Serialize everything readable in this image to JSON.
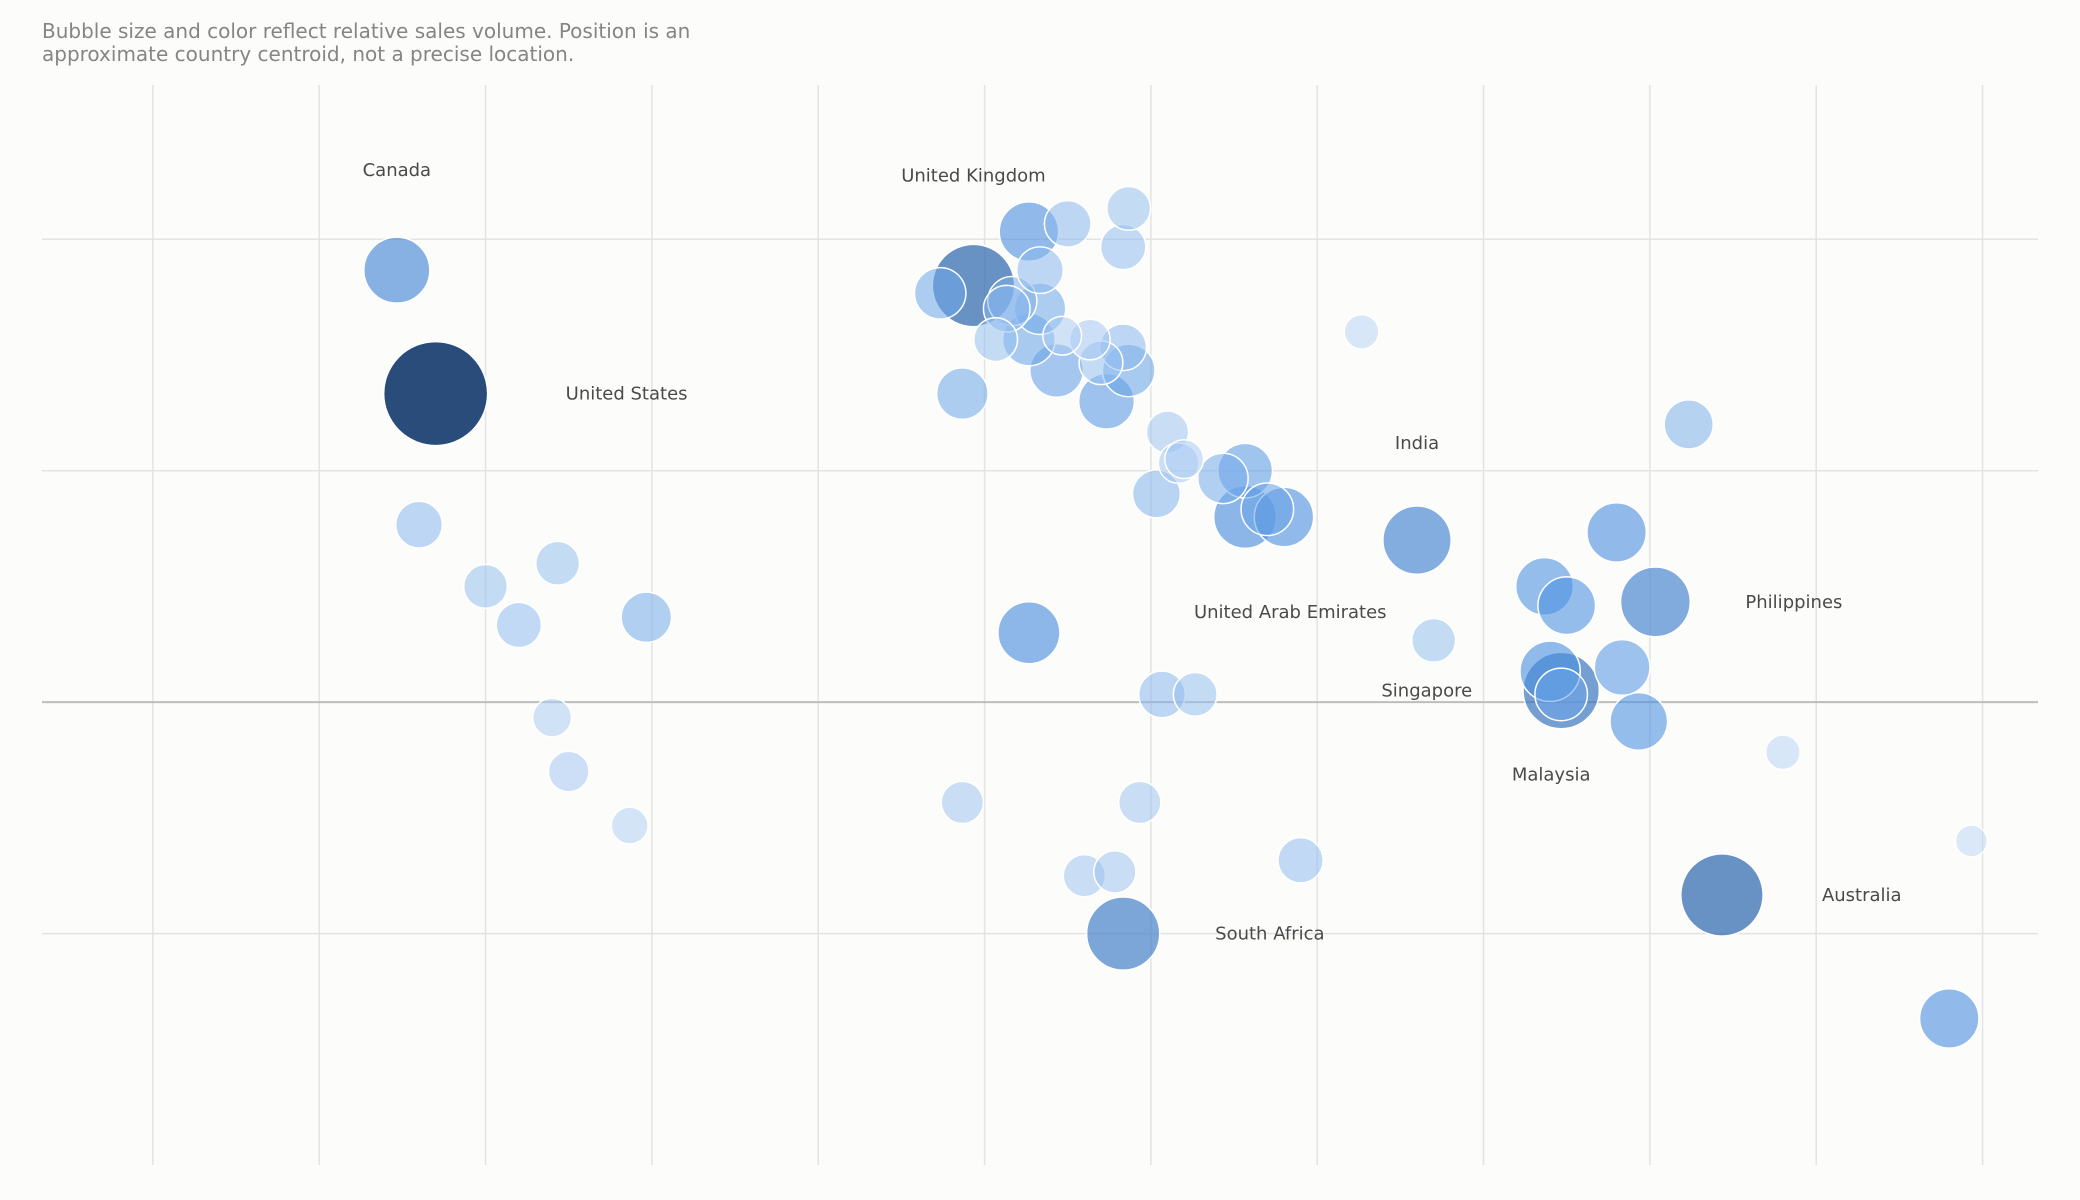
{
  "caption": "Bubble size and color reflect relative sales volume. Position is an approximate country centroid, not a precise location.",
  "chart_data": {
    "type": "scatter",
    "title": "",
    "xlabel": "",
    "ylabel": "",
    "xlim": [
      -170,
      190
    ],
    "ylim": [
      -60,
      80
    ],
    "grid": true,
    "x_gridlines": [
      -150,
      -120,
      -90,
      -60,
      -30,
      0,
      30,
      60,
      90,
      120,
      150,
      180
    ],
    "y_gridlines": [
      -30,
      0,
      30,
      60
    ],
    "baseline_y": 0,
    "color_scale": [
      "#c5dcf7",
      "#4a90e2",
      "#1e4273"
    ],
    "points": [
      {
        "x": -106,
        "y": 56,
        "size": 0.3,
        "label": "Canada"
      },
      {
        "x": -99,
        "y": 40,
        "size": 1.0,
        "label": "United States"
      },
      {
        "x": -102,
        "y": 23,
        "size": 0.1
      },
      {
        "x": -90,
        "y": 15,
        "size": 0.08
      },
      {
        "x": -77,
        "y": 18,
        "size": 0.08
      },
      {
        "x": -84,
        "y": 10,
        "size": 0.09
      },
      {
        "x": -61,
        "y": 11,
        "size": 0.13
      },
      {
        "x": -78,
        "y": -2,
        "size": 0.05
      },
      {
        "x": -75,
        "y": -9,
        "size": 0.06
      },
      {
        "x": -64,
        "y": -16,
        "size": 0.04
      },
      {
        "x": -2,
        "y": 54,
        "size": 0.55,
        "label": "United Kingdom"
      },
      {
        "x": -8,
        "y": 53,
        "size": 0.14
      },
      {
        "x": 8,
        "y": 61,
        "size": 0.22
      },
      {
        "x": 15,
        "y": 62,
        "size": 0.1
      },
      {
        "x": 26,
        "y": 64,
        "size": 0.08
      },
      {
        "x": 25,
        "y": 59,
        "size": 0.09
      },
      {
        "x": 10,
        "y": 56,
        "size": 0.1
      },
      {
        "x": 5,
        "y": 52,
        "size": 0.12
      },
      {
        "x": 4,
        "y": 51,
        "size": 0.1
      },
      {
        "x": 10,
        "y": 51,
        "size": 0.14
      },
      {
        "x": 8,
        "y": 47,
        "size": 0.15
      },
      {
        "x": 2,
        "y": 47,
        "size": 0.08
      },
      {
        "x": 14,
        "y": 47.5,
        "size": 0.05
      },
      {
        "x": 19,
        "y": 47,
        "size": 0.06
      },
      {
        "x": 25,
        "y": 46,
        "size": 0.1
      },
      {
        "x": 21,
        "y": 44,
        "size": 0.08
      },
      {
        "x": 26,
        "y": 43,
        "size": 0.15
      },
      {
        "x": 13,
        "y": 43,
        "size": 0.16
      },
      {
        "x": 22,
        "y": 39,
        "size": 0.18
      },
      {
        "x": -4,
        "y": 40,
        "size": 0.14
      },
      {
        "x": 33,
        "y": 35,
        "size": 0.07
      },
      {
        "x": 36,
        "y": 31.5,
        "size": 0.05
      },
      {
        "x": 35,
        "y": 31,
        "size": 0.06
      },
      {
        "x": 43,
        "y": 29,
        "size": 0.13
      },
      {
        "x": 47,
        "y": 30,
        "size": 0.17
      },
      {
        "x": 54,
        "y": 24,
        "size": 0.22,
        "label": "United Arab Emirates"
      },
      {
        "x": 47,
        "y": 24,
        "size": 0.26
      },
      {
        "x": 51,
        "y": 25,
        "size": 0.15
      },
      {
        "x": 31,
        "y": 27,
        "size": 0.11
      },
      {
        "x": 78,
        "y": 21,
        "size": 0.33,
        "label": "India"
      },
      {
        "x": 68,
        "y": 48,
        "size": 0.03
      },
      {
        "x": 8,
        "y": 9,
        "size": 0.25
      },
      {
        "x": 32,
        "y": 1,
        "size": 0.1
      },
      {
        "x": 38,
        "y": 1,
        "size": 0.08
      },
      {
        "x": 104,
        "y": 1.5,
        "size": 0.45,
        "label": "Singapore"
      },
      {
        "x": 102,
        "y": 4,
        "size": 0.23
      },
      {
        "x": 101,
        "y": 15,
        "size": 0.2
      },
      {
        "x": 105,
        "y": 12.5,
        "size": 0.2
      },
      {
        "x": 114,
        "y": 22,
        "size": 0.22
      },
      {
        "x": 121,
        "y": 13,
        "size": 0.35,
        "label": "Philippines"
      },
      {
        "x": 115,
        "y": 4.5,
        "size": 0.18
      },
      {
        "x": 118,
        "y": -2.5,
        "size": 0.2
      },
      {
        "x": 127,
        "y": 36,
        "size": 0.12
      },
      {
        "x": 81,
        "y": 8,
        "size": 0.08
      },
      {
        "x": 104,
        "y": 1,
        "size": 0.15,
        "label": "Malaysia"
      },
      {
        "x": 133,
        "y": -25,
        "size": 0.55,
        "label": "Australia"
      },
      {
        "x": 144,
        "y": -6.5,
        "size": 0.03
      },
      {
        "x": 178,
        "y": -18,
        "size": 0.02
      },
      {
        "x": 174,
        "y": -41,
        "size": 0.22
      },
      {
        "x": 25,
        "y": -30,
        "size": 0.4,
        "label": "South Africa"
      },
      {
        "x": 18,
        "y": -22.5,
        "size": 0.07
      },
      {
        "x": 23.5,
        "y": -22,
        "size": 0.07
      },
      {
        "x": -4,
        "y": -13,
        "size": 0.07
      },
      {
        "x": 28,
        "y": -13,
        "size": 0.07
      },
      {
        "x": 57,
        "y": -20.5,
        "size": 0.09
      }
    ]
  }
}
